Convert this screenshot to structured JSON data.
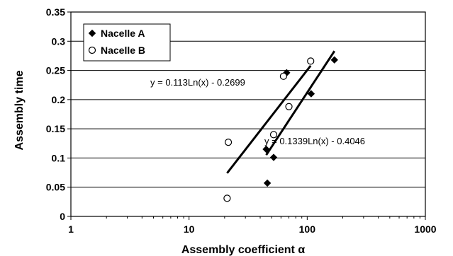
{
  "chart_data": {
    "type": "scatter",
    "title": "",
    "xlabel": "Assembly coefficient α",
    "ylabel": "Assembly time",
    "x_scale": "log",
    "xlim": [
      1,
      1000
    ],
    "ylim": [
      0,
      0.35
    ],
    "x_ticks": [
      "1",
      "10",
      "100",
      "1000"
    ],
    "y_ticks": [
      "0",
      "0.05",
      "0.1",
      "0.15",
      "0.2",
      "0.25",
      "0.3",
      "0.35"
    ],
    "grid": "horizontal",
    "legend_position": "top-left",
    "series": [
      {
        "name": "Nacelle A",
        "marker": "filled-diamond",
        "color": "#000000",
        "points": [
          {
            "x": 45,
            "y": 0.115
          },
          {
            "x": 46,
            "y": 0.057
          },
          {
            "x": 52,
            "y": 0.101
          },
          {
            "x": 67,
            "y": 0.246
          },
          {
            "x": 108,
            "y": 0.21
          },
          {
            "x": 170,
            "y": 0.268
          }
        ],
        "trendline": {
          "equation": "y = 0.1339Ln(x) - 0.4046",
          "x_range": [
            45,
            170
          ]
        }
      },
      {
        "name": "Nacelle B",
        "marker": "open-circle",
        "color": "#000000",
        "points": [
          {
            "x": 21,
            "y": 0.031
          },
          {
            "x": 21.5,
            "y": 0.127
          },
          {
            "x": 52,
            "y": 0.14
          },
          {
            "x": 63,
            "y": 0.24
          },
          {
            "x": 70,
            "y": 0.188
          },
          {
            "x": 107,
            "y": 0.266
          }
        ],
        "trendline": {
          "equation": "y = 0.113Ln(x) - 0.2699",
          "x_range": [
            21,
            107
          ]
        }
      }
    ]
  }
}
